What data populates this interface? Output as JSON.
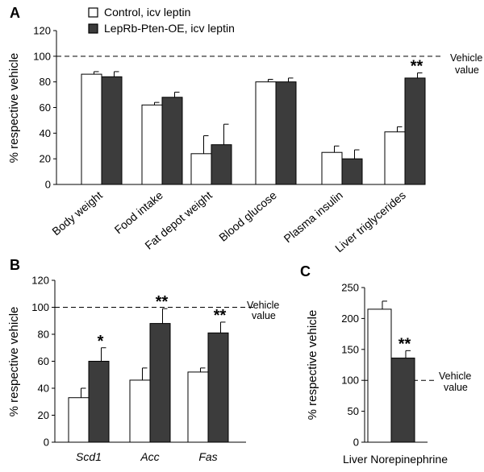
{
  "colors": {
    "control": "#ffffff",
    "treated": "#3c3c3c",
    "stroke": "#000000"
  },
  "legend": {
    "control": "Control, icv leptin",
    "treated": "LepRb-Pten-OE, icv leptin"
  },
  "chart_data": [
    {
      "panel": "A",
      "type": "bar",
      "ylabel": "% respective vehicle",
      "ylim": [
        0,
        120
      ],
      "yticks": [
        0,
        20,
        40,
        60,
        80,
        100,
        120
      ],
      "categories": [
        "Body weight",
        "Food intake",
        "Fat depot weight",
        "Blood glucose",
        "Plasma insulin",
        "Liver triglycerides"
      ],
      "series": [
        {
          "name": "Control, icv leptin",
          "values": [
            86,
            62,
            24,
            80,
            25,
            41
          ],
          "errors": [
            2,
            2,
            14,
            2,
            5,
            4
          ]
        },
        {
          "name": "LepRb-Pten-OE, icv leptin",
          "values": [
            84,
            68,
            31,
            80,
            20,
            83
          ],
          "errors": [
            4,
            4,
            16,
            3,
            7,
            4
          ]
        }
      ],
      "significance": [
        "",
        "",
        "",
        "",
        "",
        "**"
      ],
      "reference": {
        "value": 100,
        "label": [
          "Vehicle",
          "value"
        ]
      }
    },
    {
      "panel": "B",
      "type": "bar",
      "ylabel": "% respective vehicle",
      "ylim": [
        0,
        120
      ],
      "yticks": [
        0,
        20,
        40,
        60,
        80,
        100,
        120
      ],
      "categories": [
        "Scd1",
        "Acc",
        "Fas"
      ],
      "series": [
        {
          "name": "Control, icv leptin",
          "values": [
            33,
            46,
            52
          ],
          "errors": [
            7,
            9,
            3
          ]
        },
        {
          "name": "LepRb-Pten-OE, icv leptin",
          "values": [
            60,
            88,
            81
          ],
          "errors": [
            10,
            11,
            8
          ]
        }
      ],
      "significance": [
        "*",
        "**",
        "**"
      ],
      "reference": {
        "value": 100,
        "label": [
          "Vehicle",
          "value"
        ]
      }
    },
    {
      "panel": "C",
      "type": "bar",
      "ylabel": "% respective vehicle",
      "ylim": [
        0,
        250
      ],
      "yticks": [
        0,
        50,
        100,
        150,
        200,
        250
      ],
      "xlabel": "Liver Norepinephrine",
      "categories": [
        ""
      ],
      "series": [
        {
          "name": "Control, icv leptin",
          "values": [
            215
          ],
          "errors": [
            13
          ]
        },
        {
          "name": "LepRb-Pten-OE, icv leptin",
          "values": [
            136
          ],
          "errors": [
            12
          ]
        }
      ],
      "significance": [
        "**"
      ],
      "reference": {
        "value": 100,
        "label": [
          "Vehicle",
          "value"
        ]
      }
    }
  ]
}
